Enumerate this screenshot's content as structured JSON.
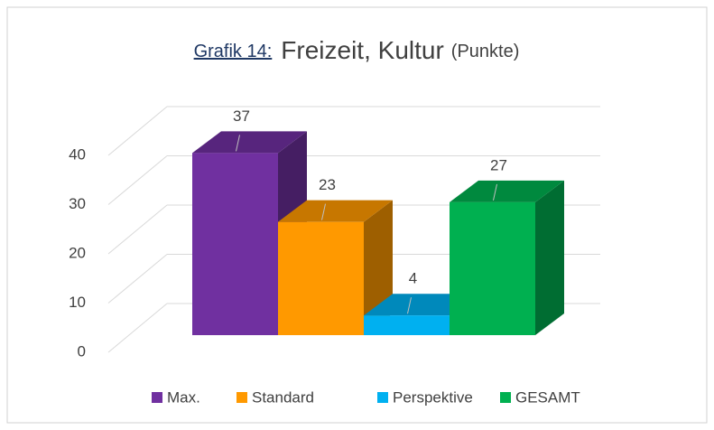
{
  "chart_data": {
    "type": "bar3d",
    "title_prefix": "Grafik 14:",
    "title": "Freizeit, Kultur",
    "title_suffix": "(Punkte)",
    "series": [
      {
        "name": "Max.",
        "color": "#7030a0",
        "values": [
          37
        ]
      },
      {
        "name": "Standard",
        "color": "#ff9900",
        "values": [
          23
        ]
      },
      {
        "name": "Perspektive",
        "color": "#00b0f0",
        "values": [
          4
        ]
      },
      {
        "name": "GESAMT",
        "color": "#00b050",
        "values": [
          27
        ]
      }
    ],
    "ylim": [
      0,
      40
    ],
    "yticks": [
      0,
      10,
      20,
      30,
      40
    ],
    "grid": true,
    "legend": "bottom"
  }
}
